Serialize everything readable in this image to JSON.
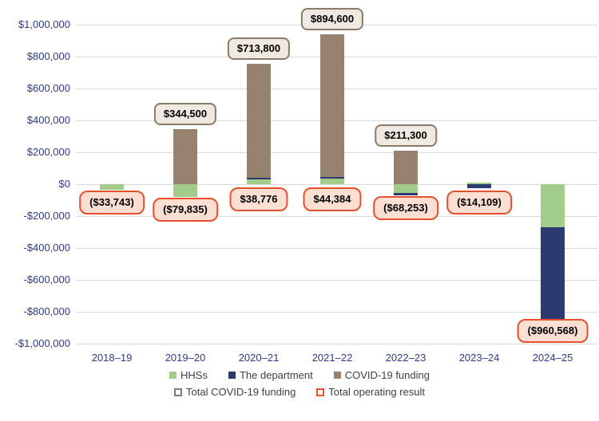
{
  "chart_data": {
    "type": "bar",
    "stacked": true,
    "title": "",
    "xlabel": "",
    "ylabel": "",
    "categories": [
      "2018–19",
      "2019–20",
      "2020–21",
      "2021–22",
      "2022–23",
      "2023–24",
      "2024–25"
    ],
    "series": [
      {
        "name": "HHSs",
        "color": "#A2CC8A",
        "values": [
          -33743,
          -79835,
          33000,
          38000,
          -55000,
          10000,
          -272000
        ]
      },
      {
        "name": "The department",
        "color": "#2D3A70",
        "values": [
          0,
          0,
          5776,
          6384,
          -13253,
          -24109,
          -688568
        ]
      },
      {
        "name": "COVID-19 funding",
        "color": "#97826F",
        "values": [
          0,
          344500,
          713800,
          894600,
          211300,
          0,
          0
        ]
      }
    ],
    "annotations": {
      "total_covid_funding": [
        null,
        "$344,500",
        "$713,800",
        "$894,600",
        "$211,300",
        null,
        null
      ],
      "total_operating_result": [
        "($33,743)",
        "($79,835)",
        "$38,776",
        "$44,384",
        "($68,253)",
        "($14,109)",
        "($960,568)"
      ]
    },
    "total_operating_result_values": [
      -33743,
      -79835,
      38776,
      44384,
      -68253,
      -14109,
      -960568
    ],
    "ylim": [
      -1000000,
      1000000
    ],
    "ytick_step": 200000,
    "ytick_values": [
      1000000,
      800000,
      600000,
      400000,
      200000,
      0,
      -200000,
      -400000,
      -600000,
      -800000,
      -1000000
    ],
    "ytick_labels": [
      "$1,000,000",
      "$800,000",
      "$600,000",
      "$400,000",
      "$200,000",
      "$0",
      "-$200,000",
      "-$400,000",
      "-$600,000",
      "-$800,000",
      "-$1,000,000"
    ],
    "grid": "horizontal",
    "legend_position": "bottom"
  },
  "legend": {
    "rows": [
      [
        {
          "label": "HHSs",
          "marker": "fill",
          "color": "#A2CC8A"
        },
        {
          "label": "The department",
          "marker": "fill",
          "color": "#2D3A70"
        },
        {
          "label": "COVID-19 funding",
          "marker": "fill",
          "color": "#97826F"
        }
      ],
      [
        {
          "label": "Total COVID-19 funding",
          "marker": "outline",
          "color": "#8B7A69"
        },
        {
          "label": "Total operating result",
          "marker": "outline",
          "color": "#E8502D"
        }
      ]
    ]
  },
  "colors": {
    "hhs_green": "#A2CC8A",
    "department_navy": "#2D3A70",
    "covid_brown": "#97826F",
    "covid_label_fill": "#EFE9E1",
    "covid_label_border": "#8B7A69",
    "operating_label_fill": "#FBDFD3",
    "operating_label_border": "#E8502D",
    "axis_text": "#2E3A8C",
    "gridline": "#D9D9D9",
    "legend_text": "#404040"
  }
}
